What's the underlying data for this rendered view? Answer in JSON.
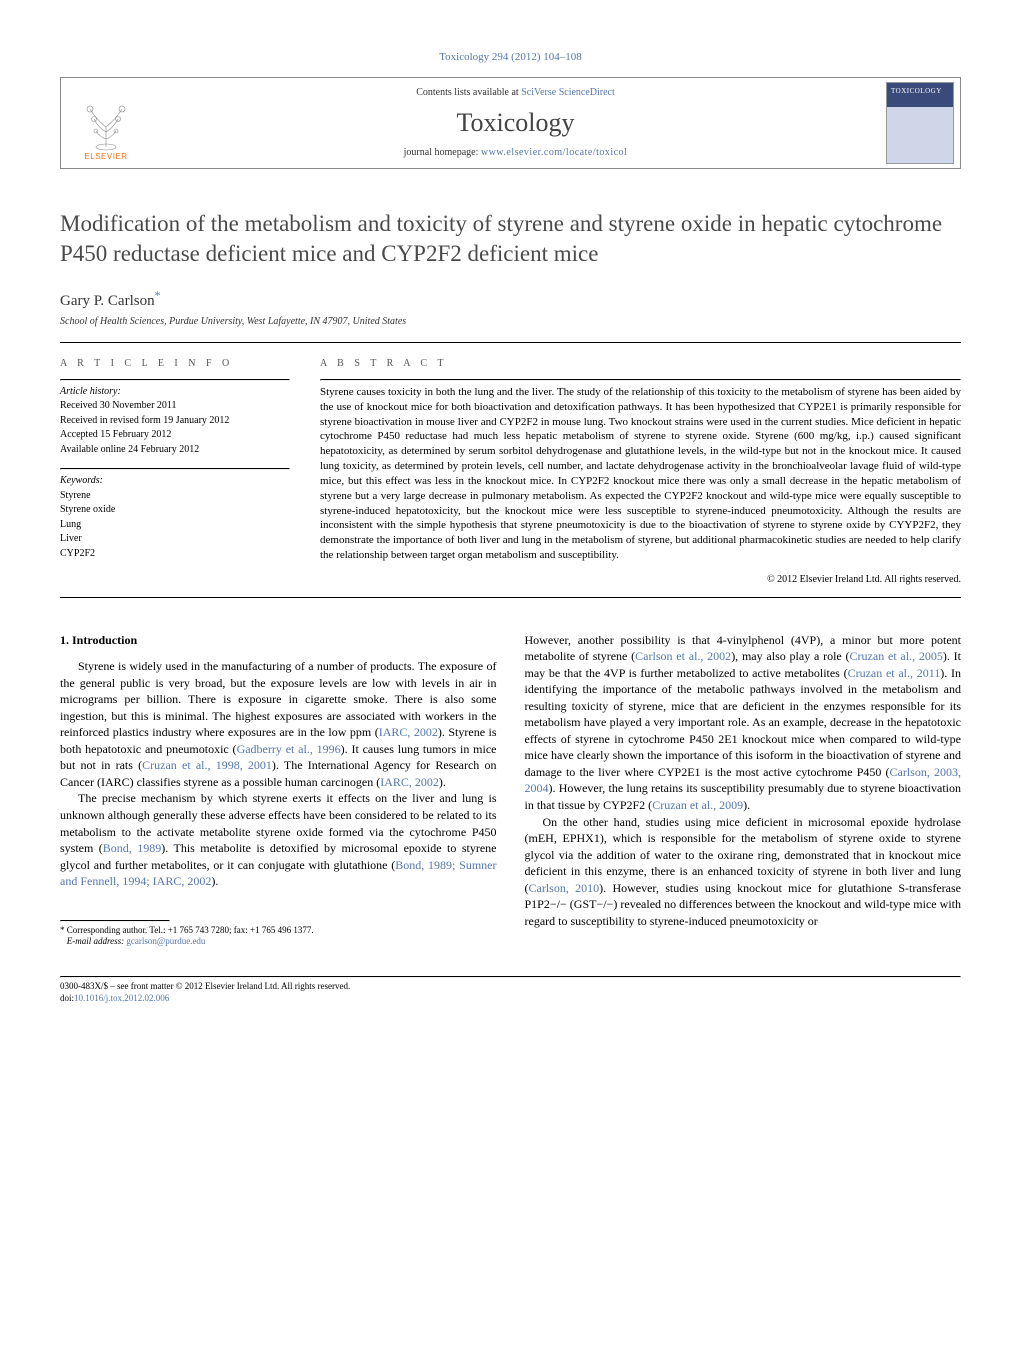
{
  "colors": {
    "link": "#5577aa",
    "text": "#000000",
    "heading": "#4a4a4a",
    "elsevier_orange": "#e67817",
    "border": "#888888",
    "background": "#ffffff"
  },
  "typography": {
    "base_font": "Times New Roman, Georgia, serif",
    "title_fontsize": 23,
    "body_fontsize": 12,
    "abstract_fontsize": 11,
    "info_fontsize": 10,
    "footnote_fontsize": 9
  },
  "header": {
    "citation": "Toxicology 294 (2012) 104–108",
    "contents_prefix": "Contents lists available at ",
    "contents_link": "SciVerse ScienceDirect",
    "journal": "Toxicology",
    "homepage_prefix": "journal homepage: ",
    "homepage_url": "www.elsevier.com/locate/toxicol",
    "publisher_label": "ELSEVIER",
    "cover_label": "TOXICOLOGY"
  },
  "article": {
    "title": "Modification of the metabolism and toxicity of styrene and styrene oxide in hepatic cytochrome P450 reductase deficient mice and CYP2F2 deficient mice",
    "author": "Gary P. Carlson",
    "corr_mark": "*",
    "affiliation": "School of Health Sciences, Purdue University, West Lafayette, IN 47907, United States"
  },
  "info": {
    "label": "A R T I C L E   I N F O",
    "history_label": "Article history:",
    "history": [
      "Received 30 November 2011",
      "Received in revised form 19 January 2012",
      "Accepted 15 February 2012",
      "Available online 24 February 2012"
    ],
    "keywords_label": "Keywords:",
    "keywords": [
      "Styrene",
      "Styrene oxide",
      "Lung",
      "Liver",
      "CYP2F2"
    ]
  },
  "abstract": {
    "label": "A B S T R A C T",
    "text": "Styrene causes toxicity in both the lung and the liver. The study of the relationship of this toxicity to the metabolism of styrene has been aided by the use of knockout mice for both bioactivation and detoxification pathways. It has been hypothesized that CYP2E1 is primarily responsible for styrene bioactivation in mouse liver and CYP2F2 in mouse lung. Two knockout strains were used in the current studies. Mice deficient in hepatic cytochrome P450 reductase had much less hepatic metabolism of styrene to styrene oxide. Styrene (600 mg/kg, i.p.) caused significant hepatotoxicity, as determined by serum sorbitol dehydrogenase and glutathione levels, in the wild-type but not in the knockout mice. It caused lung toxicity, as determined by protein levels, cell number, and lactate dehydrogenase activity in the bronchioalveolar lavage fluid of wild-type mice, but this effect was less in the knockout mice. In CYP2F2 knockout mice there was only a small decrease in the hepatic metabolism of styrene but a very large decrease in pulmonary metabolism. As expected the CYP2F2 knockout and wild-type mice were equally susceptible to styrene-induced hepatotoxicity, but the knockout mice were less susceptible to styrene-induced pneumotoxicity. Although the results are inconsistent with the simple hypothesis that styrene pneumotoxicity is due to the bioactivation of styrene to styrene oxide by CYYP2F2, they demonstrate the importance of both liver and lung in the metabolism of styrene, but additional pharmacokinetic studies are needed to help clarify the relationship between target organ metabolism and susceptibility.",
    "copyright": "© 2012 Elsevier Ireland Ltd. All rights reserved."
  },
  "body": {
    "section_heading": "1.  Introduction",
    "left_paras": [
      "Styrene is widely used in the manufacturing of a number of products. The exposure of the general public is very broad, but the exposure levels are low with levels in air in micrograms per billion. There is exposure in cigarette smoke. There is also some ingestion, but this is minimal. The highest exposures are associated with workers in the reinforced plastics industry where exposures are in the low ppm (IARC, 2002). Styrene is both hepatotoxic and pneumotoxic (Gadberry et al., 1996). It causes lung tumors in mice but not in rats (Cruzan et al., 1998, 2001). The International Agency for Research on Cancer (IARC) classifies styrene as a possible human carcinogen (IARC, 2002).",
      "The precise mechanism by which styrene exerts it effects on the liver and lung is unknown although generally these adverse effects have been considered to be related to its metabolism to the activate metabolite styrene oxide formed via the cytochrome P450 system (Bond, 1989). This metabolite is detoxified by microsomal epoxide to styrene glycol and further metabolites, or it can conjugate with glutathione (Bond, 1989; Sumner and Fennell, 1994; IARC, 2002)."
    ],
    "right_paras": [
      "However, another possibility is that 4-vinylphenol (4VP), a minor but more potent metabolite of styrene (Carlson et al., 2002), may also play a role (Cruzan et al., 2005). It may be that the 4VP is further metabolized to active metabolites (Cruzan et al., 2011). In identifying the importance of the metabolic pathways involved in the metabolism and resulting toxicity of styrene, mice that are deficient in the enzymes responsible for its metabolism have played a very important role. As an example, decrease in the hepatotoxic effects of styrene in cytochrome P450 2E1 knockout mice when compared to wild-type mice have clearly shown the importance of this isoform in the bioactivation of styrene and damage to the liver where CYP2E1 is the most active cytochrome P450 (Carlson, 2003, 2004). However, the lung retains its susceptibility presumably due to styrene bioactivation in that tissue by CYP2F2 (Cruzan et al., 2009).",
      "On the other hand, studies using mice deficient in microsomal epoxide hydrolase (mEH, EPHX1), which is responsible for the metabolism of styrene oxide to styrene glycol via the addition of water to the oxirane ring, demonstrated that in knockout mice deficient in this enzyme, there is an enhanced toxicity of styrene in both liver and lung (Carlson, 2010). However, studies using knockout mice for glutathione S-transferase P1P2−/− (GST−/−) revealed no differences between the knockout and wild-type mice with regard to susceptibility to styrene-induced pneumotoxicity or"
    ]
  },
  "footnote": {
    "corr_text": "Corresponding author. Tel.: +1 765 743 7280; fax: +1 765 496 1377.",
    "email_label": "E-mail address:",
    "email": "gcarlson@purdue.edu"
  },
  "bottom": {
    "issn_line": "0300-483X/$ – see front matter © 2012 Elsevier Ireland Ltd. All rights reserved.",
    "doi_label": "doi:",
    "doi": "10.1016/j.tox.2012.02.006"
  }
}
